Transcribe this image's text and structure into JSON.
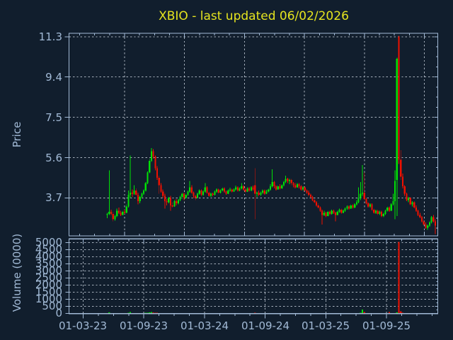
{
  "title": "XBIO - last updated 06/02/2026",
  "colors": {
    "background": "#111e2d",
    "axis": "#a2bad6",
    "grid": "#ccd5e0",
    "title": "#e5e41f",
    "up": "#00e205",
    "down": "#f01000"
  },
  "chart_data": {
    "type": "candlestick+volume",
    "title": "XBIO - last updated 06/02/2026",
    "legend": "none",
    "grid": "dashed",
    "price_axis": {
      "label": "Price",
      "ticks": [
        "11.3",
        "9.4",
        "7.5",
        "5.6",
        "3.7"
      ],
      "tick_values": [
        11.3,
        9.4,
        7.5,
        5.6,
        3.7
      ],
      "range": [
        1.91,
        11.46
      ]
    },
    "volume_axis": {
      "label": "Volume (0000)",
      "ticks": [
        "5000",
        "4500",
        "4000",
        "3500",
        "3000",
        "2500",
        "2000",
        "1500",
        "1000",
        "500",
        "0"
      ],
      "tick_values": [
        5000,
        4500,
        4000,
        3500,
        3000,
        2500,
        2000,
        1500,
        1000,
        500,
        0
      ],
      "range": [
        0,
        5250
      ]
    },
    "x_axis": {
      "ticks": [
        "01-03-23",
        "01-09-23",
        "01-03-24",
        "01-09-24",
        "01-03-25",
        "01-09-25"
      ]
    },
    "candles_format": [
      "open",
      "high",
      "low",
      "close",
      "volume_0000"
    ],
    "candles": [
      [
        2.9,
        3.0,
        2.75,
        2.95,
        12
      ],
      [
        2.95,
        5.0,
        2.9,
        3.05,
        85
      ],
      [
        3.05,
        3.15,
        2.9,
        2.95,
        30
      ],
      [
        2.95,
        3.05,
        2.6,
        2.7,
        25
      ],
      [
        2.7,
        2.9,
        2.62,
        2.85,
        18
      ],
      [
        2.85,
        3.2,
        2.8,
        3.1,
        40
      ],
      [
        3.1,
        3.25,
        2.95,
        3.0,
        22
      ],
      [
        3.0,
        3.1,
        2.85,
        2.9,
        15
      ],
      [
        2.9,
        3.1,
        2.88,
        3.05,
        20
      ],
      [
        3.05,
        3.15,
        2.95,
        3.0,
        14
      ],
      [
        3.0,
        3.4,
        2.98,
        3.3,
        35
      ],
      [
        3.3,
        4.05,
        3.25,
        3.85,
        60
      ],
      [
        3.85,
        5.7,
        3.7,
        3.95,
        110
      ],
      [
        3.95,
        4.1,
        3.75,
        3.9,
        45
      ],
      [
        3.9,
        4.3,
        3.85,
        4.05,
        38
      ],
      [
        4.05,
        4.15,
        3.8,
        3.85,
        25
      ],
      [
        3.85,
        3.95,
        3.4,
        3.55,
        30
      ],
      [
        3.55,
        3.8,
        3.45,
        3.75,
        22
      ],
      [
        3.75,
        3.95,
        3.7,
        3.9,
        26
      ],
      [
        3.9,
        4.1,
        3.85,
        4.05,
        30
      ],
      [
        4.05,
        4.45,
        4.0,
        4.4,
        55
      ],
      [
        4.4,
        4.95,
        4.35,
        4.9,
        70
      ],
      [
        4.9,
        5.55,
        4.85,
        5.45,
        90
      ],
      [
        5.45,
        6.05,
        5.4,
        5.9,
        120
      ],
      [
        5.9,
        6.0,
        5.55,
        5.65,
        80
      ],
      [
        5.65,
        5.7,
        5.0,
        5.1,
        65
      ],
      [
        5.1,
        5.2,
        4.55,
        4.65,
        50
      ],
      [
        4.65,
        4.75,
        3.9,
        4.3,
        45
      ],
      [
        4.3,
        4.4,
        3.95,
        4.0,
        30
      ],
      [
        4.0,
        4.1,
        3.7,
        3.8,
        25
      ],
      [
        3.8,
        3.9,
        3.2,
        3.55,
        35
      ],
      [
        3.55,
        3.65,
        3.35,
        3.5,
        20
      ],
      [
        3.5,
        3.75,
        3.45,
        3.7,
        22
      ],
      [
        3.7,
        3.8,
        3.1,
        3.35,
        28
      ],
      [
        3.35,
        3.5,
        3.25,
        3.3,
        15
      ],
      [
        3.3,
        3.6,
        3.28,
        3.55,
        18
      ],
      [
        3.55,
        3.65,
        3.35,
        3.45,
        14
      ],
      [
        3.45,
        3.65,
        3.4,
        3.6,
        16
      ],
      [
        3.6,
        3.8,
        3.55,
        3.75,
        20
      ],
      [
        3.75,
        3.95,
        3.65,
        3.9,
        24
      ],
      [
        3.9,
        3.95,
        3.6,
        3.7,
        18
      ],
      [
        3.7,
        3.9,
        3.65,
        3.85,
        20
      ],
      [
        3.85,
        4.05,
        3.8,
        4.0,
        26
      ],
      [
        4.0,
        4.5,
        3.95,
        4.2,
        40
      ],
      [
        4.2,
        4.3,
        3.9,
        3.95,
        25
      ],
      [
        3.95,
        4.0,
        3.7,
        3.8,
        18
      ],
      [
        3.8,
        3.85,
        3.6,
        3.7,
        14
      ],
      [
        3.7,
        3.95,
        3.68,
        3.9,
        18
      ],
      [
        3.9,
        4.1,
        3.85,
        4.05,
        22
      ],
      [
        4.05,
        4.1,
        3.8,
        3.85,
        16
      ],
      [
        3.85,
        4.05,
        3.8,
        4.0,
        18
      ],
      [
        4.0,
        4.4,
        3.95,
        4.2,
        30
      ],
      [
        4.2,
        4.25,
        3.9,
        3.95,
        20
      ],
      [
        3.95,
        4.0,
        3.75,
        3.8,
        14
      ],
      [
        3.8,
        3.95,
        3.75,
        3.9,
        16
      ],
      [
        3.9,
        3.95,
        3.78,
        3.85,
        12
      ],
      [
        3.85,
        4.05,
        3.82,
        4.0,
        15
      ],
      [
        4.0,
        4.15,
        3.95,
        4.1,
        18
      ],
      [
        4.1,
        4.15,
        3.9,
        3.95,
        13
      ],
      [
        3.95,
        4.1,
        3.92,
        4.05,
        14
      ],
      [
        4.05,
        4.2,
        4.0,
        4.15,
        16
      ],
      [
        4.15,
        4.2,
        3.95,
        4.0,
        12
      ],
      [
        4.0,
        4.05,
        3.85,
        3.9,
        10
      ],
      [
        3.9,
        4.1,
        3.88,
        4.05,
        13
      ],
      [
        4.05,
        4.18,
        4.0,
        4.1,
        14
      ],
      [
        4.1,
        4.15,
        3.95,
        4.0,
        11
      ],
      [
        4.0,
        4.15,
        3.98,
        4.1,
        13
      ],
      [
        4.1,
        4.28,
        4.05,
        4.2,
        16
      ],
      [
        4.2,
        4.25,
        4.0,
        4.05,
        12
      ],
      [
        4.05,
        4.2,
        4.02,
        4.15,
        13
      ],
      [
        4.15,
        4.4,
        4.1,
        4.25,
        20
      ],
      [
        4.25,
        4.3,
        4.05,
        4.1,
        14
      ],
      [
        4.1,
        4.18,
        3.95,
        4.0,
        12
      ],
      [
        4.0,
        4.2,
        3.98,
        4.15,
        13
      ],
      [
        4.15,
        4.22,
        4.0,
        4.05,
        11
      ],
      [
        4.05,
        4.25,
        4.02,
        4.2,
        14
      ],
      [
        4.2,
        4.28,
        4.05,
        4.1,
        12
      ],
      [
        4.3,
        5.1,
        2.7,
        3.9,
        60
      ],
      [
        3.9,
        4.0,
        3.75,
        3.95,
        20
      ],
      [
        3.95,
        4.05,
        3.8,
        3.85,
        13
      ],
      [
        3.85,
        4.0,
        3.8,
        3.95,
        12
      ],
      [
        3.95,
        4.1,
        3.9,
        4.05,
        14
      ],
      [
        4.05,
        4.1,
        3.85,
        3.9,
        11
      ],
      [
        3.9,
        4.08,
        3.88,
        4.0,
        12
      ],
      [
        4.0,
        4.15,
        3.95,
        4.1,
        13
      ],
      [
        4.1,
        4.35,
        4.05,
        4.25,
        22
      ],
      [
        4.25,
        5.05,
        4.2,
        4.45,
        45
      ],
      [
        4.45,
        4.5,
        4.15,
        4.25,
        20
      ],
      [
        4.25,
        4.3,
        4.05,
        4.1,
        14
      ],
      [
        4.1,
        4.3,
        4.08,
        4.25,
        15
      ],
      [
        4.25,
        4.35,
        4.1,
        4.15,
        12
      ],
      [
        4.15,
        4.35,
        4.12,
        4.3,
        16
      ],
      [
        4.3,
        4.5,
        4.25,
        4.45,
        20
      ],
      [
        4.45,
        4.75,
        4.4,
        4.6,
        28
      ],
      [
        4.6,
        4.65,
        4.4,
        4.5,
        18
      ],
      [
        4.5,
        4.6,
        4.35,
        4.55,
        15
      ],
      [
        4.55,
        4.6,
        4.3,
        4.4,
        14
      ],
      [
        4.4,
        4.45,
        4.2,
        4.3,
        13
      ],
      [
        4.3,
        4.4,
        4.15,
        4.2,
        12
      ],
      [
        4.2,
        4.4,
        4.18,
        4.35,
        13
      ],
      [
        4.35,
        4.4,
        4.15,
        4.25,
        11
      ],
      [
        4.25,
        4.3,
        4.05,
        4.1,
        12
      ],
      [
        4.1,
        4.25,
        4.05,
        4.2,
        12
      ],
      [
        4.2,
        4.25,
        4.0,
        4.05,
        10
      ],
      [
        4.05,
        4.1,
        3.9,
        3.95,
        11
      ],
      [
        3.95,
        4.05,
        3.8,
        3.85,
        10
      ],
      [
        3.85,
        3.9,
        3.7,
        3.75,
        12
      ],
      [
        3.75,
        3.8,
        3.55,
        3.6,
        14
      ],
      [
        3.6,
        3.65,
        3.45,
        3.5,
        13
      ],
      [
        3.5,
        3.55,
        3.3,
        3.35,
        15
      ],
      [
        3.35,
        3.45,
        3.2,
        3.25,
        14
      ],
      [
        3.25,
        3.3,
        3.05,
        3.1,
        16
      ],
      [
        3.1,
        3.15,
        2.45,
        2.9,
        40
      ],
      [
        2.9,
        3.1,
        2.85,
        3.0,
        20
      ],
      [
        3.0,
        3.05,
        2.8,
        2.85,
        14
      ],
      [
        2.85,
        3.1,
        2.82,
        3.05,
        16
      ],
      [
        3.05,
        3.1,
        2.9,
        2.95,
        12
      ],
      [
        2.95,
        3.15,
        2.92,
        3.1,
        13
      ],
      [
        3.1,
        3.15,
        2.95,
        3.0,
        11
      ],
      [
        3.0,
        3.05,
        2.6,
        2.9,
        18
      ],
      [
        2.9,
        3.1,
        2.88,
        3.05,
        13
      ],
      [
        3.05,
        3.2,
        3.0,
        3.15,
        14
      ],
      [
        3.15,
        3.2,
        2.95,
        3.0,
        11
      ],
      [
        3.0,
        3.15,
        2.98,
        3.1,
        12
      ],
      [
        3.1,
        3.25,
        3.05,
        3.2,
        14
      ],
      [
        3.2,
        3.35,
        3.15,
        3.3,
        16
      ],
      [
        3.3,
        3.35,
        3.15,
        3.2,
        12
      ],
      [
        3.2,
        3.4,
        3.18,
        3.35,
        15
      ],
      [
        3.35,
        3.4,
        3.2,
        3.25,
        12
      ],
      [
        3.25,
        3.45,
        3.22,
        3.4,
        16
      ],
      [
        3.4,
        3.6,
        3.35,
        3.5,
        20
      ],
      [
        3.5,
        4.2,
        3.45,
        3.7,
        35
      ],
      [
        3.7,
        4.45,
        3.6,
        3.9,
        60
      ],
      [
        3.9,
        5.25,
        3.8,
        3.95,
        280
      ],
      [
        3.95,
        4.9,
        3.6,
        3.65,
        120
      ],
      [
        3.65,
        3.7,
        3.4,
        3.45,
        25
      ],
      [
        3.45,
        3.5,
        3.25,
        3.3,
        18
      ],
      [
        3.3,
        3.45,
        3.25,
        3.4,
        14
      ],
      [
        3.4,
        3.45,
        3.1,
        3.15,
        13
      ],
      [
        3.15,
        3.2,
        2.95,
        3.0,
        14
      ],
      [
        3.0,
        3.15,
        2.95,
        3.1,
        12
      ],
      [
        3.1,
        3.15,
        2.9,
        2.95,
        11
      ],
      [
        2.95,
        3.1,
        2.9,
        3.05,
        12
      ],
      [
        3.05,
        3.1,
        2.8,
        2.85,
        13
      ],
      [
        2.85,
        3.0,
        2.8,
        2.95,
        12
      ],
      [
        2.95,
        3.15,
        2.9,
        3.1,
        14
      ],
      [
        3.1,
        3.3,
        3.05,
        3.25,
        16
      ],
      [
        3.25,
        3.3,
        3.05,
        3.1,
        100
      ],
      [
        3.1,
        3.45,
        3.08,
        3.4,
        30
      ],
      [
        3.4,
        3.9,
        3.35,
        3.55,
        40
      ],
      [
        3.55,
        5.0,
        2.7,
        4.5,
        40
      ],
      [
        4.55,
        10.3,
        2.85,
        10.25,
        80
      ],
      [
        11.3,
        11.35,
        5.3,
        5.5,
        5050
      ],
      [
        5.5,
        5.95,
        4.55,
        4.7,
        150
      ],
      [
        4.7,
        4.85,
        4.15,
        4.25,
        60
      ],
      [
        4.25,
        4.3,
        3.8,
        3.9,
        30
      ],
      [
        3.9,
        3.95,
        3.55,
        3.6,
        24
      ],
      [
        3.6,
        3.75,
        3.5,
        3.7,
        18
      ],
      [
        3.7,
        3.75,
        3.35,
        3.4,
        16
      ],
      [
        3.4,
        3.55,
        3.3,
        3.5,
        14
      ],
      [
        3.5,
        3.55,
        3.2,
        3.25,
        13
      ],
      [
        3.25,
        3.35,
        3.05,
        3.1,
        12
      ],
      [
        3.1,
        3.15,
        2.85,
        2.9,
        12
      ],
      [
        2.9,
        3.0,
        2.75,
        2.8,
        11
      ],
      [
        2.8,
        2.85,
        2.55,
        2.6,
        12
      ],
      [
        2.6,
        2.7,
        2.4,
        2.45,
        13
      ],
      [
        2.45,
        2.55,
        2.25,
        2.3,
        12
      ],
      [
        2.3,
        2.45,
        2.2,
        2.4,
        10
      ],
      [
        2.4,
        2.6,
        2.35,
        2.55,
        12
      ],
      [
        2.55,
        2.85,
        2.5,
        2.8,
        14
      ],
      [
        2.8,
        2.9,
        2.55,
        2.6,
        12
      ],
      [
        2.6,
        2.7,
        2.0,
        2.4,
        16
      ]
    ]
  }
}
